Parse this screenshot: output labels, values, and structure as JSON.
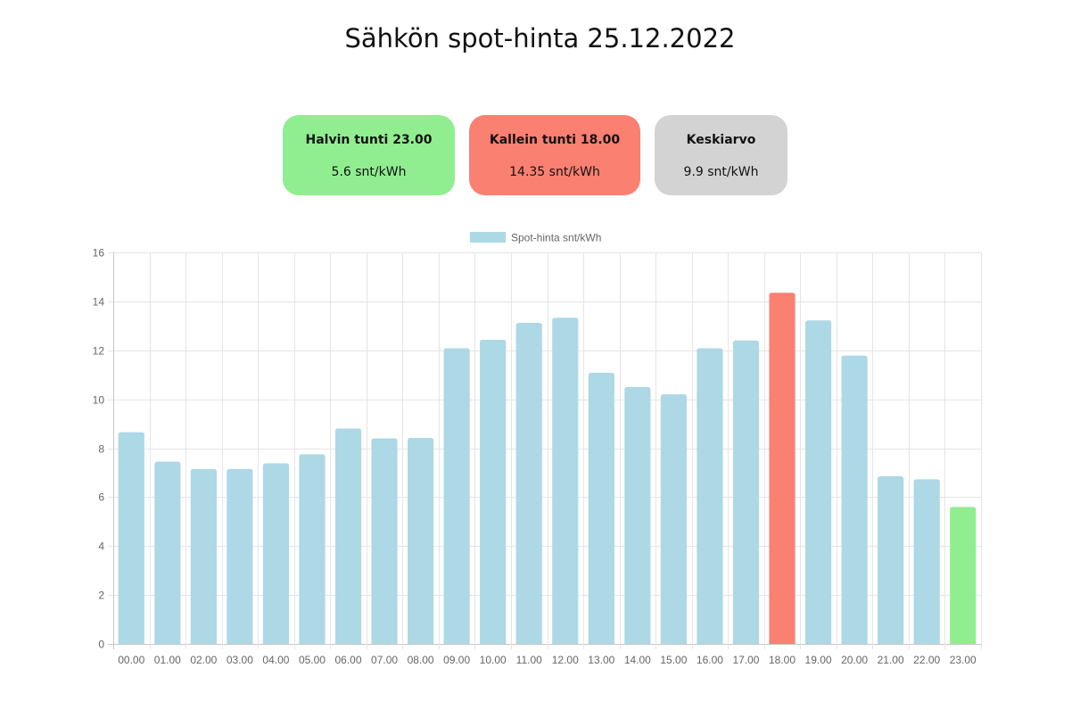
{
  "header": {
    "title": "Sähkön spot-hinta 25.12.2022"
  },
  "cards": {
    "min": {
      "label": "Halvin tunti 23.00",
      "value": "5.6 snt/kWh"
    },
    "max": {
      "label": "Kallein tunti 18.00",
      "value": "14.35 snt/kWh"
    },
    "avg": {
      "label": "Keskiarvo",
      "value": "9.9 snt/kWh"
    }
  },
  "colors": {
    "min_card": "#90ee90",
    "max_card": "#fa8072",
    "avg_card": "#d3d3d3",
    "bar_default": "#add8e6",
    "bar_max": "#fa8072",
    "bar_min": "#90ee90",
    "grid": "#e5e5e5",
    "tick_text": "#666666"
  },
  "chart_data": {
    "type": "bar",
    "categories": [
      "00.00",
      "01.00",
      "02.00",
      "03.00",
      "04.00",
      "05.00",
      "06.00",
      "07.00",
      "08.00",
      "09.00",
      "10.00",
      "11.00",
      "12.00",
      "13.00",
      "14.00",
      "15.00",
      "16.00",
      "17.00",
      "18.00",
      "19.00",
      "20.00",
      "21.00",
      "22.00",
      "23.00"
    ],
    "series": [
      {
        "name": "Spot-hinta snt/kWh",
        "values": [
          8.65,
          7.45,
          7.15,
          7.15,
          7.38,
          7.75,
          8.8,
          8.4,
          8.42,
          12.08,
          12.43,
          13.12,
          13.33,
          11.08,
          10.5,
          10.2,
          12.08,
          12.4,
          14.35,
          13.22,
          11.78,
          6.85,
          6.73,
          5.6
        ]
      }
    ],
    "highlight": {
      "max_index": 18,
      "min_index": 23
    },
    "ylim": [
      0,
      16
    ],
    "yticks": [
      0,
      2,
      4,
      6,
      8,
      10,
      12,
      14,
      16
    ],
    "grid": true,
    "legend": "top-center",
    "xlabel": "",
    "ylabel": ""
  }
}
